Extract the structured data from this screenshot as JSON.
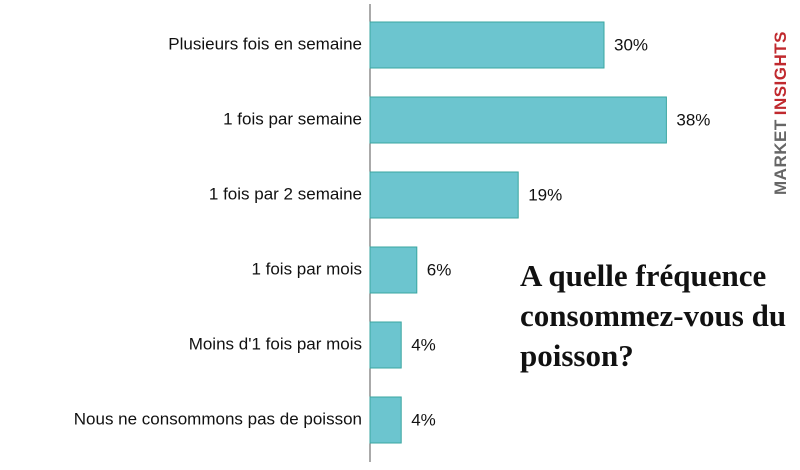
{
  "chart_data": {
    "type": "barh",
    "title": "A quelle fréquence consommez-vous du poisson?",
    "categories": [
      "Plusieurs fois en semaine",
      "1 fois par semaine",
      "1 fois par 2 semaine",
      "1 fois par mois",
      "Moins d'1 fois par mois",
      "Nous ne consommons pas de poisson"
    ],
    "values": [
      30,
      38,
      19,
      6,
      4,
      4
    ],
    "value_labels": [
      "30%",
      "38%",
      "19%",
      "6%",
      "4%",
      "4%"
    ],
    "color": "#6cc5cf"
  },
  "brand": {
    "first": "MARKET",
    "second": "INSIGHTS"
  }
}
